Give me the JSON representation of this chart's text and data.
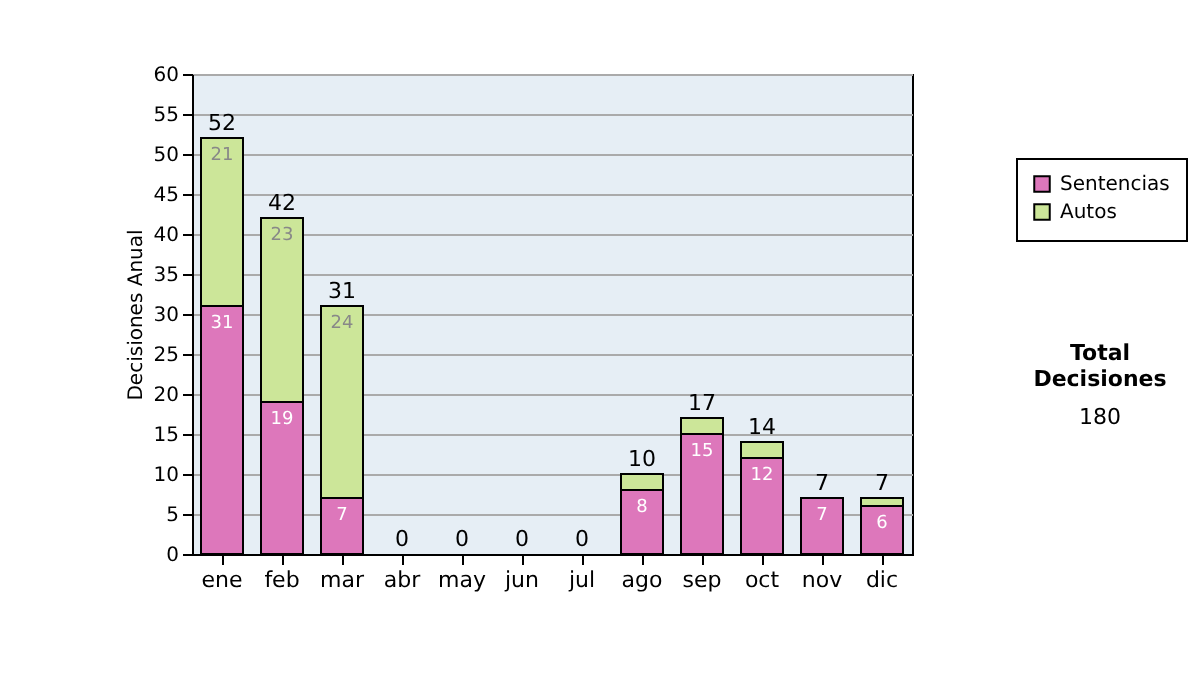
{
  "chart_data": {
    "type": "bar",
    "stacked": true,
    "ylabel": "Decisiones Anual",
    "categories": [
      "ene",
      "feb",
      "mar",
      "abr",
      "may",
      "jun",
      "jul",
      "ago",
      "sep",
      "oct",
      "nov",
      "dic"
    ],
    "series": [
      {
        "name": "Sentencias",
        "color": "#dd77bb",
        "values": [
          31,
          19,
          7,
          0,
          0,
          0,
          0,
          8,
          15,
          12,
          7,
          6
        ],
        "value_labels": [
          "31",
          "19",
          "7",
          null,
          null,
          null,
          null,
          "8",
          "15",
          "12",
          "7",
          "6"
        ]
      },
      {
        "name": "Autos",
        "color": "#cce699",
        "values": [
          21,
          23,
          24,
          0,
          0,
          0,
          0,
          2,
          2,
          2,
          0,
          1
        ],
        "value_labels": [
          "21",
          "23",
          "24",
          null,
          null,
          null,
          null,
          null,
          null,
          null,
          null,
          null
        ]
      }
    ],
    "totals": [
      "52",
      "42",
      "31",
      "0",
      "0",
      "0",
      "0",
      "10",
      "17",
      "14",
      "7",
      "7"
    ],
    "ylim": [
      0,
      60
    ],
    "yticks": [
      0,
      5,
      10,
      15,
      20,
      25,
      30,
      35,
      40,
      45,
      50,
      55,
      60
    ],
    "grid": "y",
    "legend": "right",
    "annotations": [
      "Total Decisiones",
      "180"
    ]
  }
}
